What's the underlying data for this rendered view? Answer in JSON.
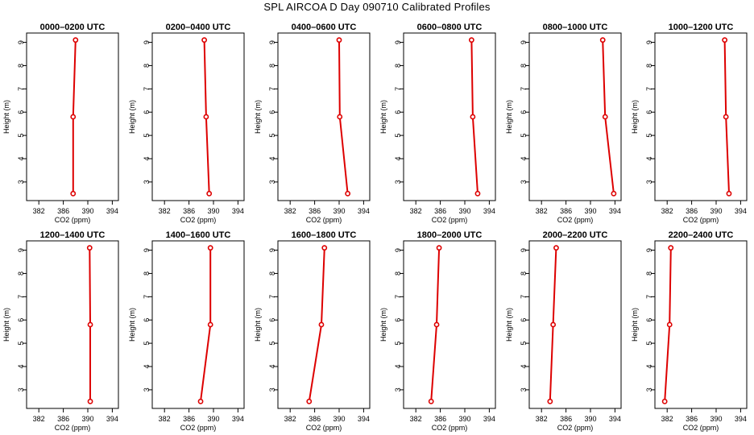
{
  "figure": {
    "title": "SPL AIRCOA D  Day 090710  Calibrated Profiles"
  },
  "style": {
    "series_color": "#dd0000",
    "axis_color": "#000000"
  },
  "chart_data": [
    {
      "type": "line",
      "title": "0000–0200 UTC",
      "xlabel": "CO2 (ppm)",
      "ylabel": "Height (m)",
      "xlim": [
        380,
        395
      ],
      "ylim": [
        2.2,
        9.4
      ],
      "xticks": [
        382,
        386,
        390,
        394
      ],
      "yticks": [
        3,
        4,
        5,
        6,
        7,
        8,
        9
      ],
      "grid": false,
      "legend": "none",
      "series": [
        {
          "points": [
            {
              "x": 387.6,
              "y": 2.5
            },
            {
              "x": 387.6,
              "y": 5.8
            },
            {
              "x": 388.0,
              "y": 9.1
            }
          ]
        }
      ]
    },
    {
      "type": "line",
      "title": "0200–0400 UTC",
      "xlabel": "CO2 (ppm)",
      "ylabel": "Height (m)",
      "xlim": [
        380,
        395
      ],
      "ylim": [
        2.2,
        9.4
      ],
      "xticks": [
        382,
        386,
        390,
        394
      ],
      "yticks": [
        3,
        4,
        5,
        6,
        7,
        8,
        9
      ],
      "grid": false,
      "legend": "none",
      "series": [
        {
          "points": [
            {
              "x": 389.3,
              "y": 2.5
            },
            {
              "x": 388.8,
              "y": 5.8
            },
            {
              "x": 388.5,
              "y": 9.1
            }
          ]
        }
      ]
    },
    {
      "type": "line",
      "title": "0400–0600 UTC",
      "xlabel": "CO2 (ppm)",
      "ylabel": "Height (m)",
      "xlim": [
        380,
        395
      ],
      "ylim": [
        2.2,
        9.4
      ],
      "xticks": [
        382,
        386,
        390,
        394
      ],
      "yticks": [
        3,
        4,
        5,
        6,
        7,
        8,
        9
      ],
      "grid": false,
      "legend": "none",
      "series": [
        {
          "points": [
            {
              "x": 391.4,
              "y": 2.5
            },
            {
              "x": 390.1,
              "y": 5.8
            },
            {
              "x": 390.0,
              "y": 9.1
            }
          ]
        }
      ]
    },
    {
      "type": "line",
      "title": "0600–0800 UTC",
      "xlabel": "CO2 (ppm)",
      "ylabel": "Height (m)",
      "xlim": [
        380,
        395
      ],
      "ylim": [
        2.2,
        9.4
      ],
      "xticks": [
        382,
        386,
        390,
        394
      ],
      "yticks": [
        3,
        4,
        5,
        6,
        7,
        8,
        9
      ],
      "grid": false,
      "legend": "none",
      "series": [
        {
          "points": [
            {
              "x": 392.1,
              "y": 2.5
            },
            {
              "x": 391.3,
              "y": 5.8
            },
            {
              "x": 391.1,
              "y": 9.1
            }
          ]
        }
      ]
    },
    {
      "type": "line",
      "title": "0800–1000 UTC",
      "xlabel": "CO2 (ppm)",
      "ylabel": "Height (m)",
      "xlim": [
        380,
        395
      ],
      "ylim": [
        2.2,
        9.4
      ],
      "xticks": [
        382,
        386,
        390,
        394
      ],
      "yticks": [
        3,
        4,
        5,
        6,
        7,
        8,
        9
      ],
      "grid": false,
      "legend": "none",
      "series": [
        {
          "points": [
            {
              "x": 393.8,
              "y": 2.5
            },
            {
              "x": 392.4,
              "y": 5.8
            },
            {
              "x": 392.0,
              "y": 9.1
            }
          ]
        }
      ]
    },
    {
      "type": "line",
      "title": "1000–1200 UTC",
      "xlabel": "CO2 (ppm)",
      "ylabel": "Height (m)",
      "xlim": [
        380,
        395
      ],
      "ylim": [
        2.2,
        9.4
      ],
      "xticks": [
        382,
        386,
        390,
        394
      ],
      "yticks": [
        3,
        4,
        5,
        6,
        7,
        8,
        9
      ],
      "grid": false,
      "legend": "none",
      "series": [
        {
          "points": [
            {
              "x": 392.1,
              "y": 2.5
            },
            {
              "x": 391.6,
              "y": 5.8
            },
            {
              "x": 391.4,
              "y": 9.1
            }
          ]
        }
      ]
    },
    {
      "type": "line",
      "title": "1200–1400 UTC",
      "xlabel": "CO2 (ppm)",
      "ylabel": "Height (m)",
      "xlim": [
        380,
        395
      ],
      "ylim": [
        2.2,
        9.4
      ],
      "xticks": [
        382,
        386,
        390,
        394
      ],
      "yticks": [
        3,
        4,
        5,
        6,
        7,
        8,
        9
      ],
      "grid": false,
      "legend": "none",
      "series": [
        {
          "points": [
            {
              "x": 390.4,
              "y": 2.5
            },
            {
              "x": 390.4,
              "y": 5.8
            },
            {
              "x": 390.3,
              "y": 9.1
            }
          ]
        }
      ]
    },
    {
      "type": "line",
      "title": "1400–1600 UTC",
      "xlabel": "CO2 (ppm)",
      "ylabel": "Height (m)",
      "xlim": [
        380,
        395
      ],
      "ylim": [
        2.2,
        9.4
      ],
      "xticks": [
        382,
        386,
        390,
        394
      ],
      "yticks": [
        3,
        4,
        5,
        6,
        7,
        8,
        9
      ],
      "grid": false,
      "legend": "none",
      "series": [
        {
          "points": [
            {
              "x": 387.9,
              "y": 2.5
            },
            {
              "x": 389.5,
              "y": 5.8
            },
            {
              "x": 389.5,
              "y": 9.1
            }
          ]
        }
      ]
    },
    {
      "type": "line",
      "title": "1600–1800 UTC",
      "xlabel": "CO2 (ppm)",
      "ylabel": "Height (m)",
      "xlim": [
        380,
        395
      ],
      "ylim": [
        2.2,
        9.4
      ],
      "xticks": [
        382,
        386,
        390,
        394
      ],
      "yticks": [
        3,
        4,
        5,
        6,
        7,
        8,
        9
      ],
      "grid": false,
      "legend": "none",
      "series": [
        {
          "points": [
            {
              "x": 385.1,
              "y": 2.5
            },
            {
              "x": 387.1,
              "y": 5.8
            },
            {
              "x": 387.6,
              "y": 9.1
            }
          ]
        }
      ]
    },
    {
      "type": "line",
      "title": "1800–2000 UTC",
      "xlabel": "CO2 (ppm)",
      "ylabel": "Height (m)",
      "xlim": [
        380,
        395
      ],
      "ylim": [
        2.2,
        9.4
      ],
      "xticks": [
        382,
        386,
        390,
        394
      ],
      "yticks": [
        3,
        4,
        5,
        6,
        7,
        8,
        9
      ],
      "grid": false,
      "legend": "none",
      "series": [
        {
          "points": [
            {
              "x": 384.5,
              "y": 2.5
            },
            {
              "x": 385.4,
              "y": 5.8
            },
            {
              "x": 385.8,
              "y": 9.1
            }
          ]
        }
      ]
    },
    {
      "type": "line",
      "title": "2000–2200 UTC",
      "xlabel": "CO2 (ppm)",
      "ylabel": "Height (m)",
      "xlim": [
        380,
        395
      ],
      "ylim": [
        2.2,
        9.4
      ],
      "xticks": [
        382,
        386,
        390,
        394
      ],
      "yticks": [
        3,
        4,
        5,
        6,
        7,
        8,
        9
      ],
      "grid": false,
      "legend": "none",
      "series": [
        {
          "points": [
            {
              "x": 383.4,
              "y": 2.5
            },
            {
              "x": 383.9,
              "y": 5.8
            },
            {
              "x": 384.4,
              "y": 9.1
            }
          ]
        }
      ]
    },
    {
      "type": "line",
      "title": "2200–2400 UTC",
      "xlabel": "CO2 (ppm)",
      "ylabel": "Height (m)",
      "xlim": [
        380,
        395
      ],
      "ylim": [
        2.2,
        9.4
      ],
      "xticks": [
        382,
        386,
        390,
        394
      ],
      "yticks": [
        3,
        4,
        5,
        6,
        7,
        8,
        9
      ],
      "grid": false,
      "legend": "none",
      "series": [
        {
          "points": [
            {
              "x": 381.6,
              "y": 2.5
            },
            {
              "x": 382.4,
              "y": 5.8
            },
            {
              "x": 382.6,
              "y": 9.1
            }
          ]
        }
      ]
    }
  ]
}
